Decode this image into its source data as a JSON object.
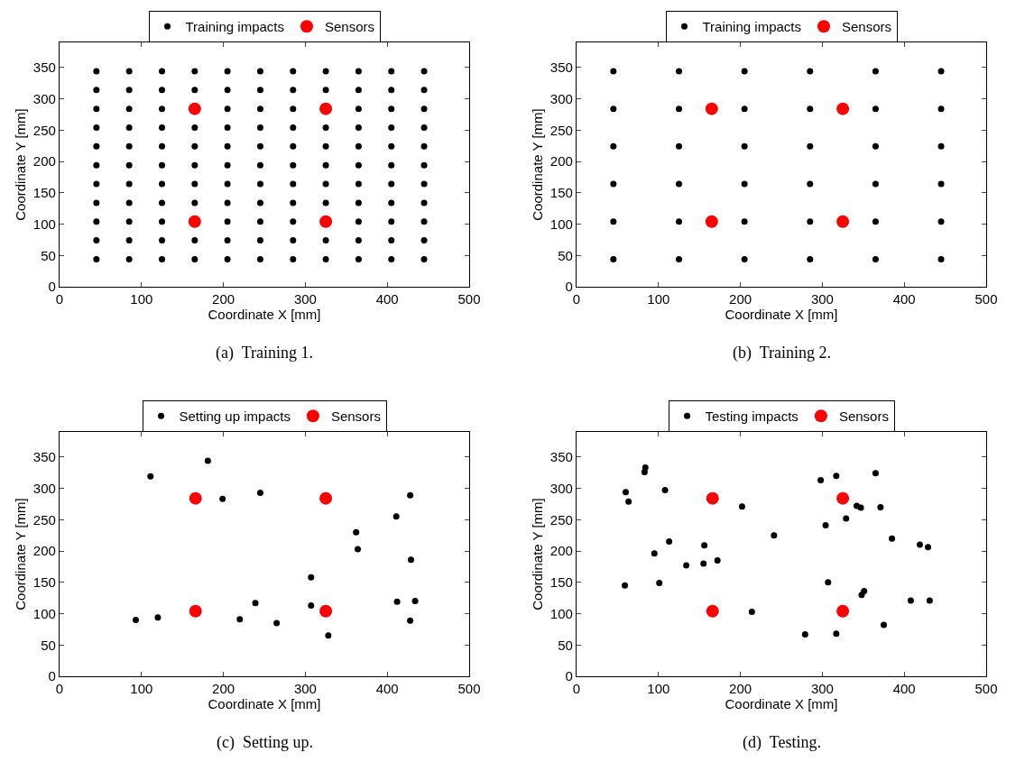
{
  "chart_data": [
    {
      "type": "scatter",
      "xlabel": "Coordinate X [mm]",
      "ylabel": "Coordinate Y [mm]",
      "annotations": [
        "(a)  Training 1."
      ],
      "xlim": [
        0,
        500
      ],
      "xticks": [
        0,
        100,
        200,
        300,
        400,
        500
      ],
      "ylim": [
        0,
        390
      ],
      "yticks": [
        0,
        50,
        100,
        150,
        200,
        250,
        300,
        350
      ],
      "grid": false,
      "legend": "top",
      "marker": "circle",
      "series": [
        {
          "name": "Training impacts",
          "color": "#000000",
          "x": [
            45,
            85,
            125,
            165,
            205,
            245,
            285,
            325,
            365,
            405,
            445,
            45,
            85,
            125,
            165,
            205,
            245,
            285,
            325,
            365,
            405,
            445,
            45,
            85,
            125,
            165,
            205,
            245,
            285,
            325,
            365,
            405,
            445,
            45,
            85,
            125,
            165,
            205,
            245,
            285,
            325,
            365,
            405,
            445,
            45,
            85,
            125,
            165,
            205,
            245,
            285,
            325,
            365,
            405,
            445,
            45,
            85,
            125,
            165,
            205,
            245,
            285,
            325,
            365,
            405,
            445,
            45,
            85,
            125,
            165,
            205,
            245,
            285,
            325,
            365,
            405,
            445,
            45,
            85,
            125,
            165,
            205,
            245,
            285,
            325,
            365,
            405,
            445,
            45,
            85,
            125,
            165,
            205,
            245,
            285,
            325,
            365,
            405,
            445,
            45,
            85,
            125,
            165,
            205,
            245,
            285,
            325,
            365,
            405,
            445,
            45,
            85,
            125,
            165,
            205,
            245,
            285,
            325,
            365,
            405,
            445
          ],
          "values": [
            44,
            44,
            44,
            44,
            44,
            44,
            44,
            44,
            44,
            44,
            44,
            74,
            74,
            74,
            74,
            74,
            74,
            74,
            74,
            74,
            74,
            74,
            104,
            104,
            104,
            null,
            104,
            104,
            104,
            null,
            104,
            104,
            104,
            134,
            134,
            134,
            134,
            134,
            134,
            134,
            134,
            134,
            134,
            134,
            164,
            164,
            164,
            164,
            164,
            164,
            164,
            164,
            164,
            164,
            164,
            194,
            194,
            194,
            194,
            194,
            194,
            194,
            194,
            194,
            194,
            194,
            224,
            224,
            224,
            224,
            224,
            224,
            224,
            224,
            224,
            224,
            224,
            254,
            254,
            254,
            254,
            254,
            254,
            254,
            254,
            254,
            254,
            254,
            284,
            284,
            284,
            null,
            284,
            284,
            284,
            null,
            284,
            284,
            284,
            314,
            314,
            314,
            314,
            314,
            314,
            314,
            314,
            314,
            314,
            314,
            344,
            344,
            344,
            344,
            344,
            344,
            344,
            344,
            344,
            344,
            344
          ]
        },
        {
          "name": "Sensors",
          "color": "#ff0000",
          "x": [
            165,
            325,
            165,
            325
          ],
          "values": [
            284,
            284,
            104,
            104
          ]
        }
      ]
    },
    {
      "type": "scatter",
      "xlabel": "Coordinate X [mm]",
      "ylabel": "Coordinate Y [mm]",
      "annotations": [
        "(b)  Training 2."
      ],
      "xlim": [
        0,
        500
      ],
      "xticks": [
        0,
        100,
        200,
        300,
        400,
        500
      ],
      "ylim": [
        0,
        390
      ],
      "yticks": [
        0,
        50,
        100,
        150,
        200,
        250,
        300,
        350
      ],
      "grid": false,
      "legend": "top",
      "marker": "circle",
      "series": [
        {
          "name": "Training impacts",
          "color": "#000000",
          "x": [
            45,
            125,
            205,
            285,
            365,
            445,
            45,
            125,
            205,
            285,
            365,
            445,
            45,
            125,
            205,
            285,
            365,
            445,
            45,
            125,
            205,
            285,
            365,
            445,
            45,
            125,
            205,
            285,
            365,
            445,
            45,
            125,
            205,
            285,
            365,
            445
          ],
          "values": [
            44,
            44,
            44,
            44,
            44,
            44,
            104,
            104,
            104,
            104,
            104,
            104,
            164,
            164,
            164,
            164,
            164,
            164,
            224,
            224,
            224,
            224,
            224,
            224,
            284,
            284,
            284,
            284,
            284,
            284,
            344,
            344,
            344,
            344,
            344,
            344
          ]
        },
        {
          "name": "Sensors",
          "color": "#ff0000",
          "x": [
            165,
            325,
            165,
            325
          ],
          "values": [
            284,
            284,
            104,
            104
          ]
        }
      ]
    },
    {
      "type": "scatter",
      "xlabel": "Coordinate X [mm]",
      "ylabel": "Coordinate Y [mm]",
      "annotations": [
        "(c)  Setting up."
      ],
      "xlim": [
        0,
        500
      ],
      "xticks": [
        0,
        100,
        200,
        300,
        400,
        500
      ],
      "ylim": [
        0,
        390
      ],
      "yticks": [
        0,
        50,
        100,
        150,
        200,
        250,
        300,
        350
      ],
      "grid": false,
      "legend": "top",
      "marker": "circle",
      "series": [
        {
          "name": "Setting up impacts",
          "color": "#000000",
          "x": [
            111,
            181,
            199,
            245,
            428,
            411,
            362,
            364,
            429,
            307,
            93,
            120,
            220,
            239,
            265,
            307,
            328,
            412,
            434,
            428
          ],
          "values": [
            319,
            344,
            283,
            293,
            289,
            255,
            230,
            203,
            186,
            158,
            90,
            94,
            91,
            117,
            85,
            113,
            65,
            119,
            120,
            89
          ]
        },
        {
          "name": "Sensors",
          "color": "#ff0000",
          "x": [
            166,
            325,
            166,
            325
          ],
          "values": [
            284,
            284,
            104,
            104
          ]
        }
      ]
    },
    {
      "type": "scatter",
      "xlabel": "Coordinate X [mm]",
      "ylabel": "Coordinate Y [mm]",
      "annotations": [
        "(d)  Testing."
      ],
      "xlim": [
        0,
        500
      ],
      "xticks": [
        0,
        100,
        200,
        300,
        400,
        500
      ],
      "ylim": [
        0,
        390
      ],
      "yticks": [
        0,
        50,
        100,
        150,
        200,
        250,
        300,
        350
      ],
      "grid": false,
      "legend": "top",
      "marker": "circle",
      "series": [
        {
          "name": "Testing impacts",
          "color": "#000000",
          "x": [
            60,
            63.5,
            84,
            83,
            108,
            202,
            298,
            317,
            365,
            342,
            347,
            371,
            329,
            304,
            241,
            385,
            419,
            429,
            113,
            95,
            156,
            134,
            155,
            172,
            59,
            101,
            307,
            351,
            348,
            408,
            431,
            214,
            375,
            279,
            317
          ],
          "values": [
            294,
            279,
            333,
            326,
            297,
            271,
            313,
            320,
            324,
            272,
            269,
            270,
            252,
            241,
            225,
            220,
            210,
            206,
            215,
            196,
            209,
            177,
            180,
            185,
            145,
            149,
            150,
            136,
            130,
            121,
            121,
            103,
            82,
            67,
            68
          ]
        },
        {
          "name": "Sensors",
          "color": "#ff0000",
          "x": [
            166,
            325,
            166,
            325
          ],
          "values": [
            284,
            284,
            104,
            104
          ]
        }
      ]
    }
  ]
}
